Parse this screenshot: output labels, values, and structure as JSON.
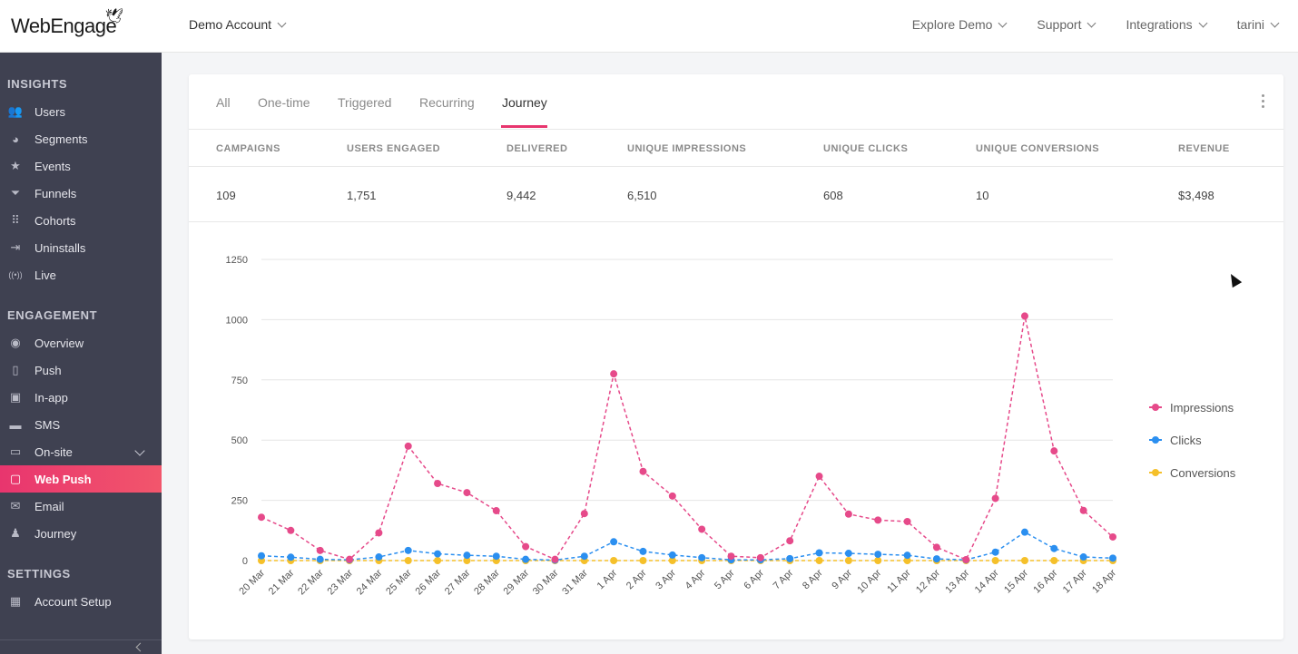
{
  "header": {
    "logo_text": "WebEngage",
    "account_label": "Demo Account",
    "nav": [
      {
        "label": "Explore Demo",
        "name": "explore-demo"
      },
      {
        "label": "Support",
        "name": "support"
      },
      {
        "label": "Integrations",
        "name": "integrations"
      },
      {
        "label": "tarini",
        "name": "user-menu"
      }
    ]
  },
  "sidebar": {
    "sections": [
      {
        "label": "INSIGHTS",
        "items": [
          {
            "label": "Users",
            "icon": "users-icon",
            "glyph": "👥"
          },
          {
            "label": "Segments",
            "icon": "segments-icon",
            "glyph": "◕"
          },
          {
            "label": "Events",
            "icon": "star-icon",
            "glyph": "★"
          },
          {
            "label": "Funnels",
            "icon": "funnel-icon",
            "glyph": "⏷"
          },
          {
            "label": "Cohorts",
            "icon": "cohorts-icon",
            "glyph": "⠿"
          },
          {
            "label": "Uninstalls",
            "icon": "uninstall-icon",
            "glyph": "⇥"
          },
          {
            "label": "Live",
            "icon": "live-icon",
            "glyph": "((•))"
          }
        ]
      },
      {
        "label": "ENGAGEMENT",
        "items": [
          {
            "label": "Overview",
            "icon": "eye-icon",
            "glyph": "◉"
          },
          {
            "label": "Push",
            "icon": "push-icon",
            "glyph": "▯"
          },
          {
            "label": "In-app",
            "icon": "in-app-icon",
            "glyph": "▣"
          },
          {
            "label": "SMS",
            "icon": "sms-icon",
            "glyph": "▬"
          },
          {
            "label": "On-site",
            "icon": "on-site-icon",
            "glyph": "▭",
            "expandable": true
          },
          {
            "label": "Web Push",
            "icon": "web-push-icon",
            "glyph": "▢",
            "active": true
          },
          {
            "label": "Email",
            "icon": "email-icon",
            "glyph": "✉"
          },
          {
            "label": "Journey",
            "icon": "journey-icon",
            "glyph": "♟"
          }
        ]
      },
      {
        "label": "SETTINGS",
        "items": [
          {
            "label": "Account Setup",
            "icon": "account-setup-icon",
            "glyph": "▦"
          }
        ]
      }
    ]
  },
  "tabs": [
    {
      "label": "All"
    },
    {
      "label": "One-time"
    },
    {
      "label": "Triggered"
    },
    {
      "label": "Recurring"
    },
    {
      "label": "Journey",
      "active": true
    }
  ],
  "stats": [
    {
      "label": "CAMPAIGNS",
      "value": "109"
    },
    {
      "label": "USERS ENGAGED",
      "value": "1,751"
    },
    {
      "label": "DELIVERED",
      "value": "9,442"
    },
    {
      "label": "UNIQUE IMPRESSIONS",
      "value": "6,510"
    },
    {
      "label": "UNIQUE CLICKS",
      "value": "608"
    },
    {
      "label": "UNIQUE CONVERSIONS",
      "value": "10"
    },
    {
      "label": "REVENUE",
      "value": "$3,498"
    }
  ],
  "colors": {
    "accent": "#e8356e",
    "impressions": "#e64a8a",
    "clicks": "#2b8ff0",
    "conversions": "#f5c02a",
    "sidebar_bg": "#3f4151"
  },
  "chart_data": {
    "type": "line",
    "x": [
      "20 Mar",
      "21 Mar",
      "22 Mar",
      "23 Mar",
      "24 Mar",
      "25 Mar",
      "26 Mar",
      "27 Mar",
      "28 Mar",
      "29 Mar",
      "30 Mar",
      "31 Mar",
      "1 Apr",
      "2 Apr",
      "3 Apr",
      "4 Apr",
      "5 Apr",
      "6 Apr",
      "7 Apr",
      "8 Apr",
      "9 Apr",
      "10 Apr",
      "11 Apr",
      "12 Apr",
      "13 Apr",
      "14 Apr",
      "15 Apr",
      "16 Apr",
      "17 Apr",
      "18 Apr"
    ],
    "yticks": [
      0,
      250,
      500,
      750,
      1000,
      1250
    ],
    "ylim": [
      0,
      1250
    ],
    "grid": true,
    "legend_position": "right",
    "series": [
      {
        "name": "Impressions",
        "color": "#e64a8a",
        "values": [
          180,
          125,
          42,
          5,
          115,
          475,
          320,
          282,
          207,
          58,
          5,
          195,
          775,
          370,
          268,
          130,
          18,
          12,
          82,
          350,
          193,
          168,
          162,
          55,
          4,
          258,
          1015,
          455,
          208,
          98
        ]
      },
      {
        "name": "Clicks",
        "color": "#2b8ff0",
        "values": [
          20,
          14,
          5,
          3,
          15,
          42,
          28,
          22,
          18,
          5,
          2,
          18,
          78,
          38,
          23,
          12,
          3,
          3,
          8,
          32,
          30,
          26,
          22,
          7,
          3,
          35,
          118,
          50,
          15,
          10
        ]
      },
      {
        "name": "Conversions",
        "color": "#f5c02a",
        "values": [
          0,
          0,
          0,
          0,
          0,
          0,
          0,
          0,
          0,
          0,
          0,
          0,
          0,
          0,
          0,
          0,
          0,
          0,
          0,
          0,
          0,
          0,
          0,
          0,
          0,
          0,
          0,
          0,
          0,
          0
        ]
      }
    ]
  }
}
